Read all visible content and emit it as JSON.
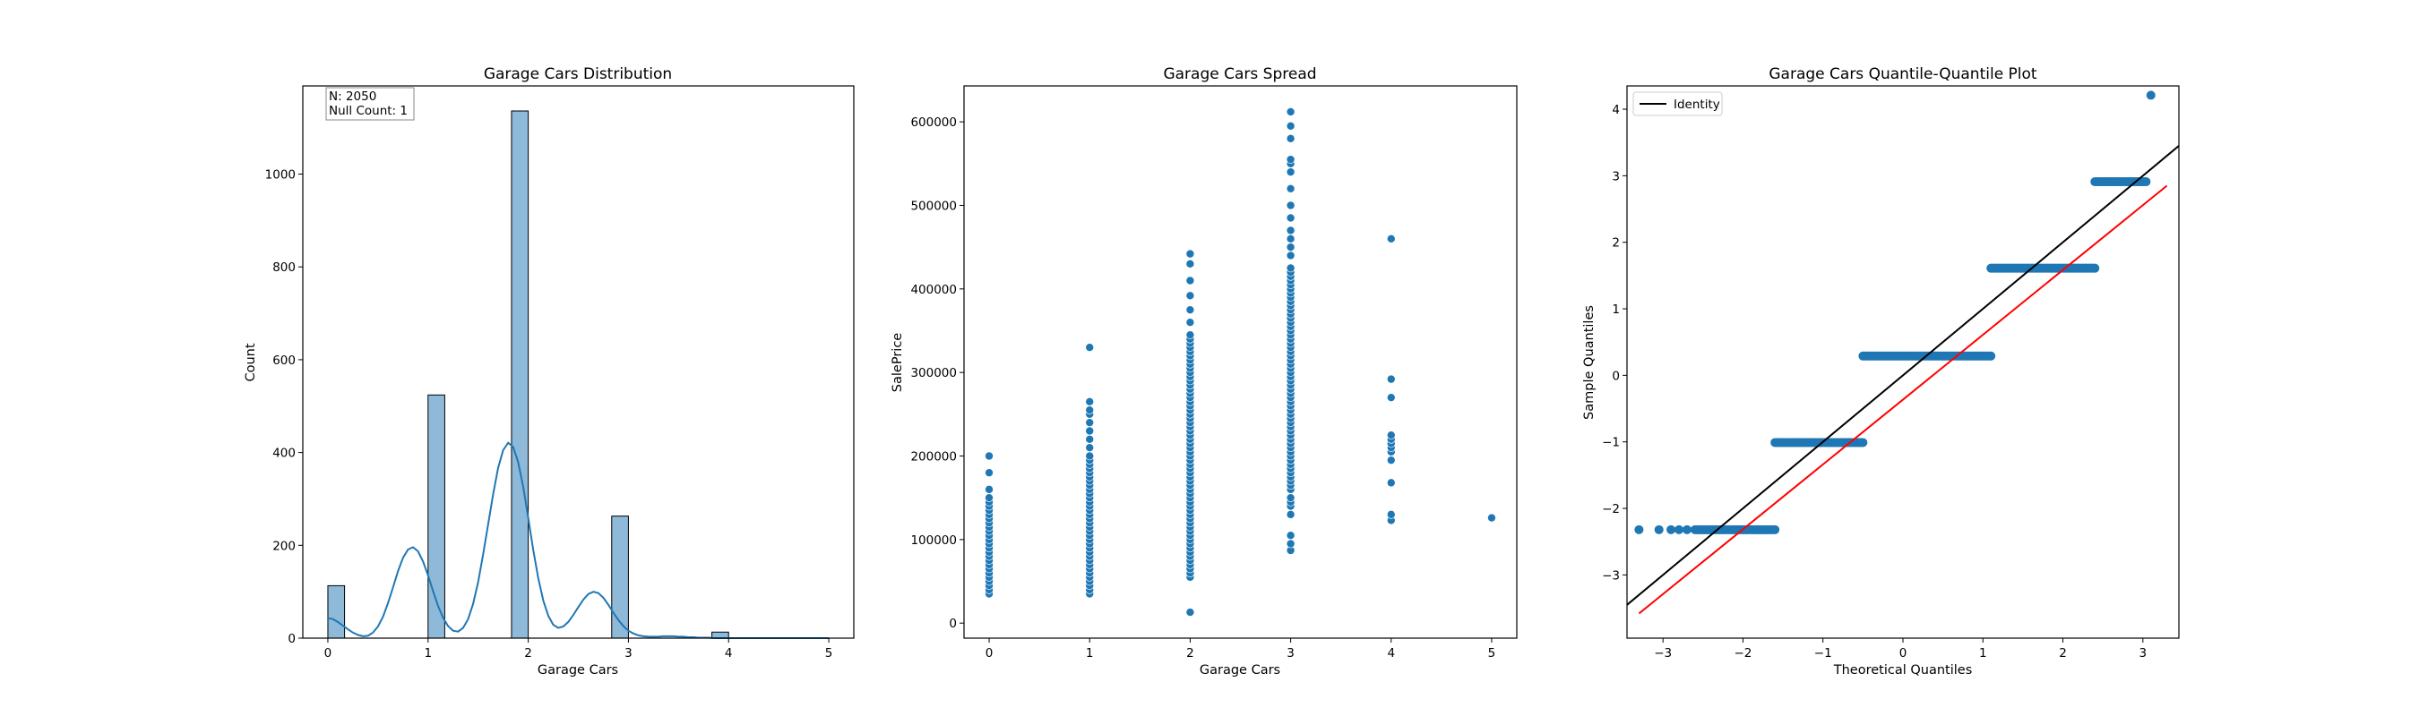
{
  "chart_data": [
    {
      "type": "bar",
      "title": "Garage Cars Distribution",
      "xlabel": "Garage Cars",
      "ylabel": "Count",
      "xlim": [
        -0.25,
        5.25
      ],
      "ylim": [
        0,
        1190
      ],
      "xticks": [
        0,
        1,
        2,
        3,
        4,
        5
      ],
      "yticks": [
        0,
        200,
        400,
        600,
        800,
        1000
      ],
      "bin_width": 0.1667,
      "bins": [
        {
          "left": 0.0,
          "count": 113
        },
        {
          "left": 1.0,
          "count": 524
        },
        {
          "left": 1.8333,
          "count": 1136
        },
        {
          "left": 2.8333,
          "count": 263
        },
        {
          "left": 3.8333,
          "count": 13
        }
      ],
      "kde": {
        "x": [
          0.0,
          0.05,
          0.1,
          0.15,
          0.2,
          0.25,
          0.3,
          0.35,
          0.4,
          0.45,
          0.5,
          0.55,
          0.6,
          0.65,
          0.7,
          0.75,
          0.8,
          0.85,
          0.9,
          0.95,
          1.0,
          1.05,
          1.1,
          1.15,
          1.2,
          1.25,
          1.3,
          1.35,
          1.4,
          1.45,
          1.5,
          1.55,
          1.6,
          1.65,
          1.7,
          1.75,
          1.8,
          1.85,
          1.9,
          1.95,
          2.0,
          2.05,
          2.1,
          2.15,
          2.2,
          2.25,
          2.3,
          2.35,
          2.4,
          2.45,
          2.5,
          2.55,
          2.6,
          2.65,
          2.7,
          2.75,
          2.8,
          2.85,
          2.9,
          2.95,
          3.0,
          3.05,
          3.1,
          3.15,
          3.2,
          3.25,
          3.3,
          3.35,
          3.4,
          3.45,
          3.5,
          3.55,
          3.6,
          3.65,
          3.7,
          3.75,
          3.8,
          3.85,
          3.9,
          3.95,
          4.0,
          4.05,
          4.1,
          4.15,
          4.2,
          4.25,
          4.3,
          4.35,
          4.4,
          4.45,
          4.5,
          4.55,
          4.6,
          4.65,
          4.7,
          4.75,
          4.8,
          4.85,
          4.9,
          4.95,
          5.0
        ],
        "y": [
          43,
          41,
          35,
          27,
          19,
          12,
          7,
          4,
          5,
          12,
          25,
          46,
          75,
          109,
          144,
          173,
          191,
          196,
          187,
          165,
          135,
          101,
          69,
          44,
          26,
          16,
          14,
          22,
          41,
          74,
          121,
          181,
          246,
          311,
          367,
          405,
          421,
          412,
          379,
          326,
          259,
          190,
          129,
          81,
          48,
          29,
          22,
          25,
          35,
          50,
          67,
          83,
          95,
          100,
          97,
          87,
          72,
          55,
          39,
          26,
          16,
          10,
          6,
          4,
          3,
          3,
          3,
          4,
          4,
          4,
          3,
          3,
          2,
          2,
          1,
          1,
          1,
          0,
          0,
          0,
          0,
          0,
          0,
          0,
          0,
          0,
          0,
          0,
          0,
          0,
          0,
          0,
          0,
          0,
          0,
          0,
          0,
          0,
          0,
          0,
          0
        ],
        "color": "#1f77b4"
      },
      "annotation": [
        "N: 2050",
        "Null Count: 1"
      ],
      "bar_color": "#8fb9d9"
    },
    {
      "type": "scatter",
      "title": "Garage Cars Spread",
      "xlabel": "Garage Cars",
      "ylabel": "SalePrice",
      "xlim": [
        -0.25,
        5.25
      ],
      "ylim": [
        -18000,
        643000
      ],
      "xticks": [
        0,
        1,
        2,
        3,
        4,
        5
      ],
      "yticks": [
        0,
        100000,
        200000,
        300000,
        400000,
        500000,
        600000
      ],
      "color": "#1f77b4",
      "groups": [
        {
          "x": 0,
          "y": [
            35000,
            40000,
            45000,
            50000,
            55000,
            60000,
            65000,
            70000,
            75000,
            80000,
            85000,
            90000,
            95000,
            100000,
            105000,
            110000,
            115000,
            120000,
            125000,
            130000,
            135000,
            140000,
            145000,
            150000,
            160000,
            180000,
            200000
          ]
        },
        {
          "x": 1,
          "y": [
            35000,
            40000,
            45000,
            50000,
            55000,
            60000,
            65000,
            70000,
            75000,
            80000,
            85000,
            90000,
            95000,
            100000,
            105000,
            110000,
            115000,
            120000,
            125000,
            130000,
            135000,
            140000,
            145000,
            150000,
            155000,
            160000,
            165000,
            170000,
            175000,
            180000,
            185000,
            190000,
            195000,
            200000,
            210000,
            220000,
            230000,
            240000,
            250000,
            255000,
            265000,
            330000
          ]
        },
        {
          "x": 2,
          "y": [
            13000,
            55000,
            60000,
            65000,
            70000,
            75000,
            80000,
            85000,
            90000,
            95000,
            100000,
            105000,
            110000,
            115000,
            120000,
            125000,
            130000,
            135000,
            140000,
            145000,
            150000,
            155000,
            160000,
            165000,
            170000,
            175000,
            180000,
            185000,
            190000,
            195000,
            200000,
            205000,
            210000,
            215000,
            220000,
            225000,
            230000,
            235000,
            240000,
            245000,
            250000,
            255000,
            260000,
            265000,
            270000,
            275000,
            280000,
            285000,
            290000,
            295000,
            300000,
            305000,
            310000,
            315000,
            320000,
            325000,
            330000,
            335000,
            340000,
            345000,
            360000,
            375000,
            392000,
            410000,
            430000,
            442000
          ]
        },
        {
          "x": 3,
          "y": [
            87000,
            95000,
            105000,
            130000,
            140000,
            145000,
            150000,
            160000,
            165000,
            170000,
            175000,
            180000,
            185000,
            190000,
            195000,
            200000,
            205000,
            210000,
            215000,
            220000,
            225000,
            230000,
            235000,
            240000,
            245000,
            250000,
            255000,
            260000,
            265000,
            270000,
            275000,
            280000,
            285000,
            290000,
            295000,
            300000,
            305000,
            310000,
            315000,
            320000,
            325000,
            330000,
            335000,
            340000,
            345000,
            350000,
            355000,
            360000,
            365000,
            370000,
            375000,
            380000,
            385000,
            390000,
            395000,
            400000,
            405000,
            410000,
            415000,
            420000,
            425000,
            440000,
            450000,
            460000,
            470000,
            485000,
            500000,
            520000,
            540000,
            550000,
            555000,
            580000,
            595000,
            612000
          ]
        },
        {
          "x": 4,
          "y": [
            123000,
            130000,
            168000,
            195000,
            205000,
            210000,
            215000,
            220000,
            225000,
            270000,
            292000,
            460000
          ]
        },
        {
          "x": 5,
          "y": [
            126000
          ]
        }
      ]
    },
    {
      "type": "scatter",
      "title": "Garage Cars Quantile-Quantile Plot",
      "xlabel": "Theoretical Quantiles",
      "ylabel": "Sample Quantiles",
      "xlim": [
        -3.45,
        3.45
      ],
      "ylim": [
        -3.95,
        4.35
      ],
      "xticks": [
        -3,
        -2,
        -1,
        0,
        1,
        2,
        3
      ],
      "yticks": [
        -3,
        -2,
        -1,
        0,
        1,
        2,
        3,
        4
      ],
      "legend": {
        "position": "upper left",
        "entries": [
          {
            "label": "Identity",
            "color": "#000000"
          }
        ]
      },
      "identity_line": {
        "x": [
          -3.45,
          3.45
        ],
        "y": [
          -3.45,
          3.45
        ],
        "color": "#000000"
      },
      "fit_line": {
        "x": [
          -3.3,
          3.3
        ],
        "y": [
          -3.58,
          2.85
        ],
        "color": "#ff0000"
      },
      "point_color": "#1f77b4",
      "groups": [
        {
          "y": -2.32,
          "x_from": -2.6,
          "x_to": -1.6,
          "extra_x": [
            -3.3,
            -3.05,
            -2.9,
            -2.8,
            -2.7
          ]
        },
        {
          "y": -1.01,
          "x_from": -1.6,
          "x_to": -0.5
        },
        {
          "y": 0.29,
          "x_from": -0.5,
          "x_to": 1.1
        },
        {
          "y": 1.61,
          "x_from": 1.1,
          "x_to": 2.4
        },
        {
          "y": 2.91,
          "x_from": 2.4,
          "x_to": 3.05
        },
        {
          "y": 4.21,
          "x_from": 3.1,
          "x_to": 3.1
        }
      ]
    }
  ]
}
